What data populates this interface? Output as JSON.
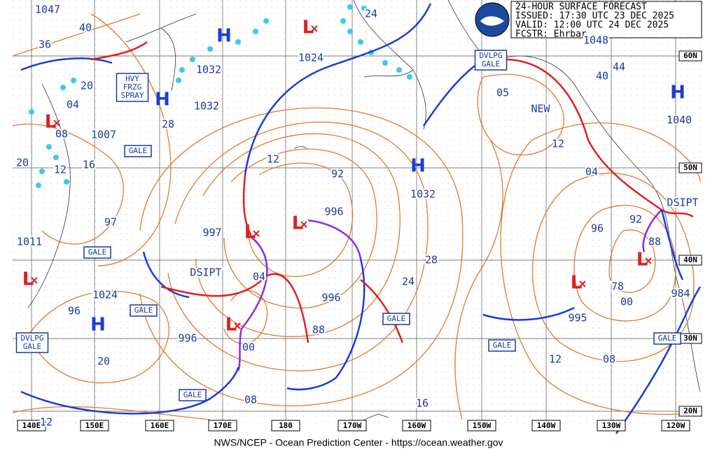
{
  "header": {
    "title": "24-HOUR SURFACE FORECAST",
    "issued": "ISSUED: 17:30 UTC 23 DEC 2025",
    "valid": "VALID: 12:00 UTC 24 DEC 2025",
    "forecaster": "FCSTR: Ehrbar"
  },
  "footer": "NWS/NCEP - Ocean Prediction Center - https://ocean.weather.gov",
  "longitude_labels": [
    "140E",
    "150E",
    "160E",
    "170E",
    "180",
    "170W",
    "160W",
    "150W",
    "140W",
    "130W",
    "120W"
  ],
  "latitude_labels": [
    "60N",
    "50N",
    "40N",
    "30N",
    "20N"
  ],
  "pressure_labels": [
    "1047",
    "40",
    "36",
    "20",
    "04",
    "1007",
    "08",
    "16",
    "12",
    "20",
    "97",
    "1011",
    "1024",
    "96",
    "20",
    "12",
    "1032",
    "1032",
    "28",
    "1024",
    "24",
    "12",
    "92",
    "997",
    "996",
    "04",
    "DSIPT",
    "996",
    "88",
    "996",
    "00",
    "08",
    "1032",
    "28",
    "24",
    "16",
    "05",
    "NEW",
    "12",
    "04",
    "96",
    "92",
    "88",
    "78",
    "00",
    "995",
    "12",
    "08",
    "44",
    "40",
    "1048",
    "1040",
    "984",
    "DSIPT"
  ],
  "highs": [
    "H",
    "H",
    "H",
    "H",
    "H"
  ],
  "lows": [
    "L",
    "L",
    "L",
    "L",
    "L",
    "L",
    "L",
    "L"
  ],
  "boxes": [
    [
      "HVY",
      "FRZG",
      "SPRAY"
    ],
    [
      "GALE"
    ],
    [
      "GALE"
    ],
    [
      "GALE"
    ],
    [
      "DVLPG",
      "GALE"
    ],
    [
      "GALE"
    ],
    [
      "GALE"
    ],
    [
      "DVLPG",
      "GALE"
    ],
    [
      "GALE"
    ],
    [
      "GALE"
    ]
  ]
}
